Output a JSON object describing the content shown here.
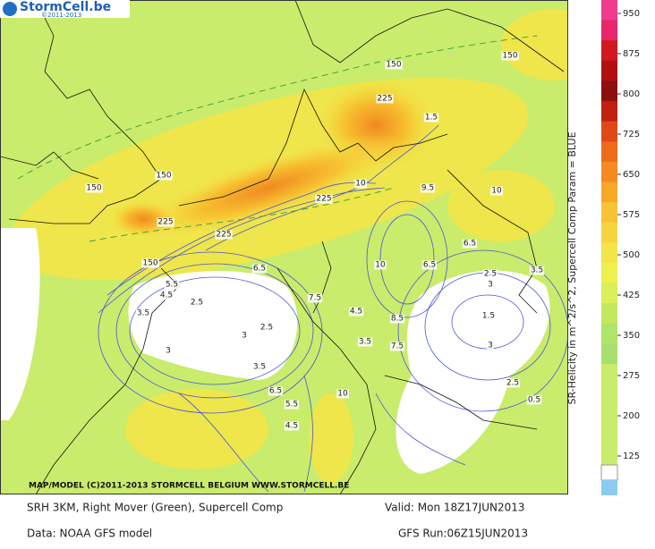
{
  "header": {
    "logo": "StormCell.be",
    "copyright": "©2011-2013"
  },
  "map": {
    "credit": "MAP/MODEL (C)2011-2013 STORMCELL BELGIUM WWW.STORMCELL.BE",
    "labels": [
      "150",
      "150",
      "225",
      "150",
      "150",
      "225",
      "225",
      "225",
      "10",
      "9.5",
      "10",
      "6.5",
      "5.5",
      "4.5",
      "3.5",
      "2.5",
      "1.5",
      "3",
      "2.5",
      "3",
      "3.5",
      "2.5",
      "3",
      "3.5",
      "6.5",
      "7.5",
      "4.5",
      "3.5",
      "8.5",
      "7.5",
      "10",
      "6.5",
      "5.5",
      "4.5",
      "2.5",
      "3",
      "0.5",
      "1.5",
      "6.5",
      "10",
      "150"
    ]
  },
  "legend": {
    "title": "SR-Helicity in m^2/s^2, Supercell Comp Param = BLUE",
    "ticks": [
      950,
      875,
      800,
      725,
      650,
      575,
      500,
      425,
      350,
      275,
      200,
      125
    ]
  },
  "footer": {
    "product": "SRH 3KM, Right Mover (Green), Supercell Comp",
    "valid": "Valid: Mon 18Z17JUN2013",
    "source": "Data: NOAA GFS model",
    "run": "GFS Run:06Z15JUN2013"
  }
}
